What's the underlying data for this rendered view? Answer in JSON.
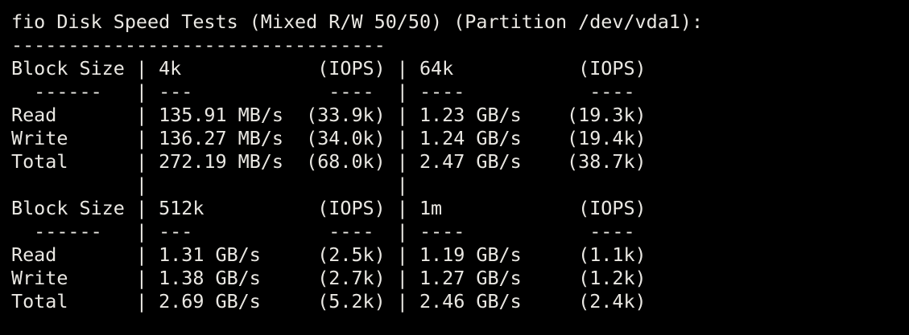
{
  "terminal": {
    "colors": {
      "background": "#000000",
      "foreground": "#eae8e3"
    },
    "lines": [
      "fio Disk Speed Tests (Mixed R/W 50/50) (Partition /dev/vda1):",
      "---------------------------------",
      "Block Size | 4k            (IOPS) | 64k           (IOPS)",
      "  ------   | ---            ----  | ----           ----",
      "Read       | 135.91 MB/s  (33.9k) | 1.23 GB/s    (19.3k)",
      "Write      | 136.27 MB/s  (34.0k) | 1.24 GB/s    (19.4k)",
      "Total      | 272.19 MB/s  (68.0k) | 2.47 GB/s    (38.7k)",
      "           |                      |",
      "Block Size | 512k          (IOPS) | 1m            (IOPS)",
      "  ------   | ---            ----  | ----           ----",
      "Read       | 1.31 GB/s     (2.5k) | 1.19 GB/s     (1.1k)",
      "Write      | 1.38 GB/s     (2.7k) | 1.27 GB/s     (1.2k)",
      "Total      | 2.69 GB/s     (5.2k) | 2.46 GB/s     (2.4k)"
    ]
  },
  "fio_results": {
    "test_name": "fio Disk Speed Tests",
    "mode": "Mixed R/W 50/50",
    "partition": "/dev/vda1",
    "tables": [
      {
        "block_sizes": [
          "4k",
          "64k"
        ],
        "columns": [
          "Block Size",
          "4k",
          "(IOPS)",
          "64k",
          "(IOPS)"
        ],
        "rows": [
          {
            "label": "Read",
            "speed_1": "135.91 MB/s",
            "iops_1": "33.9k",
            "speed_2": "1.23 GB/s",
            "iops_2": "19.3k"
          },
          {
            "label": "Write",
            "speed_1": "136.27 MB/s",
            "iops_1": "34.0k",
            "speed_2": "1.24 GB/s",
            "iops_2": "19.4k"
          },
          {
            "label": "Total",
            "speed_1": "272.19 MB/s",
            "iops_1": "68.0k",
            "speed_2": "2.47 GB/s",
            "iops_2": "38.7k"
          }
        ]
      },
      {
        "block_sizes": [
          "512k",
          "1m"
        ],
        "columns": [
          "Block Size",
          "512k",
          "(IOPS)",
          "1m",
          "(IOPS)"
        ],
        "rows": [
          {
            "label": "Read",
            "speed_1": "1.31 GB/s",
            "iops_1": "2.5k",
            "speed_2": "1.19 GB/s",
            "iops_2": "1.1k"
          },
          {
            "label": "Write",
            "speed_1": "1.38 GB/s",
            "iops_1": "2.7k",
            "speed_2": "1.27 GB/s",
            "iops_2": "1.2k"
          },
          {
            "label": "Total",
            "speed_1": "2.69 GB/s",
            "iops_1": "5.2k",
            "speed_2": "2.46 GB/s",
            "iops_2": "2.4k"
          }
        ]
      }
    ]
  }
}
